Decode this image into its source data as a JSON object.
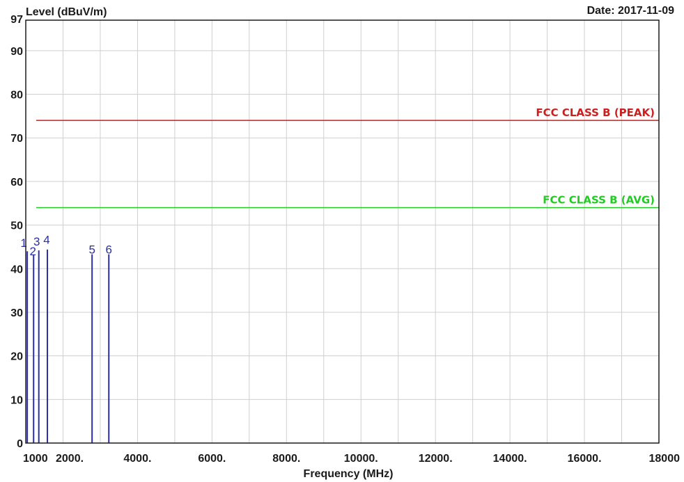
{
  "date_label": "Date: 2017-11-09",
  "chart_data": {
    "type": "line",
    "ylabel": "Level (dBuV/m)",
    "xlabel": "Frequency (MHz)",
    "xlim": [
      1000,
      18000
    ],
    "ylim": [
      0,
      97
    ],
    "x_ticks": [
      {
        "value": 1000,
        "label": "1000"
      },
      {
        "value": 2000,
        "label": "2000."
      },
      {
        "value": 4000,
        "label": "4000."
      },
      {
        "value": 6000,
        "label": "6000."
      },
      {
        "value": 8000,
        "label": "8000."
      },
      {
        "value": 10000,
        "label": "10000."
      },
      {
        "value": 12000,
        "label": "12000."
      },
      {
        "value": 14000,
        "label": "14000."
      },
      {
        "value": 16000,
        "label": "16000."
      },
      {
        "value": 18000,
        "label": "18000"
      }
    ],
    "y_ticks": [
      {
        "value": 0,
        "label": "0"
      },
      {
        "value": 10,
        "label": "10"
      },
      {
        "value": 20,
        "label": "20"
      },
      {
        "value": 30,
        "label": "30"
      },
      {
        "value": 40,
        "label": "40"
      },
      {
        "value": 50,
        "label": "50"
      },
      {
        "value": 60,
        "label": "60"
      },
      {
        "value": 70,
        "label": "70"
      },
      {
        "value": 80,
        "label": "80"
      },
      {
        "value": 90,
        "label": "90"
      },
      {
        "value": 97,
        "label": "97"
      }
    ],
    "x_grid": [
      1000,
      2000,
      3000,
      4000,
      5000,
      6000,
      7000,
      8000,
      9000,
      10000,
      11000,
      12000,
      13000,
      14000,
      15000,
      16000,
      17000,
      18000
    ],
    "y_grid": [
      0,
      10,
      20,
      30,
      40,
      50,
      60,
      70,
      80,
      90,
      97
    ],
    "grid": true,
    "limits": [
      {
        "name": "FCC CLASS B (PEAK)",
        "value": 74,
        "color": "#cc1f1f"
      },
      {
        "name": "FCC CLASS B (AVG)",
        "value": 54,
        "color": "#22cc22"
      }
    ],
    "markers": [
      {
        "label": "1",
        "x": 1040,
        "y": 44
      },
      {
        "label": "2",
        "x": 1210,
        "y": 43.2
      },
      {
        "label": "3",
        "x": 1350,
        "y": 44.2
      },
      {
        "label": "4",
        "x": 1580,
        "y": 44.4
      },
      {
        "label": "5",
        "x": 2780,
        "y": 43.3
      },
      {
        "label": "6",
        "x": 3230,
        "y": 43.3
      }
    ],
    "marker_color": "#2a2fa8",
    "plot_border_color": "#1a1a1a",
    "grid_color": "#cfcfcf"
  }
}
